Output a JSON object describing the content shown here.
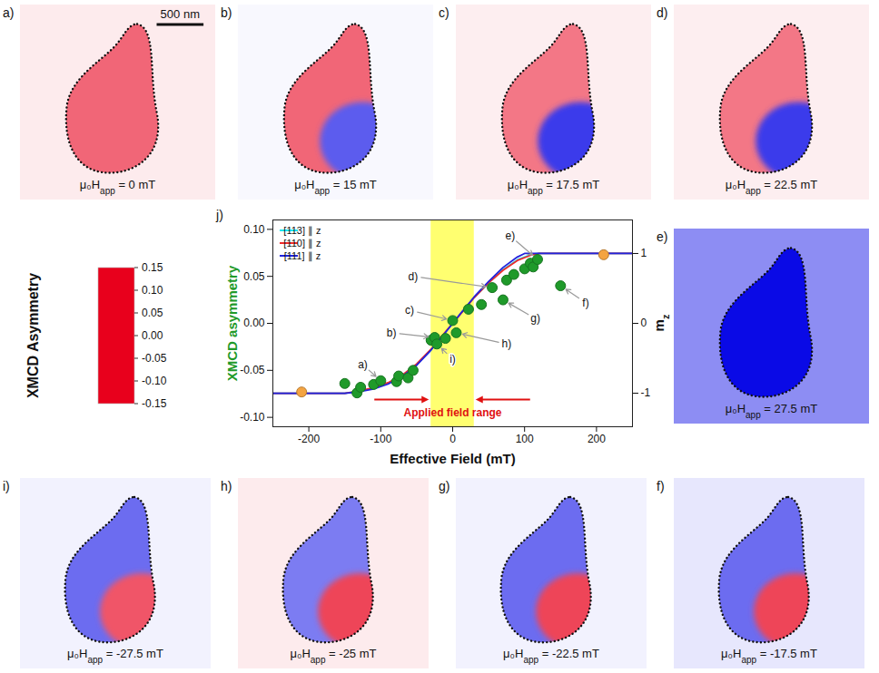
{
  "chart_data": {
    "type": "scatter",
    "panel": "j)",
    "xlabel": "Effective Field (mT)",
    "ylabel": "XMCD asymmetry",
    "y2label": "mz",
    "xlim": [
      -250,
      250
    ],
    "xticks": [
      -200,
      -100,
      0,
      100,
      200
    ],
    "ylim": [
      -0.11,
      0.11
    ],
    "yticks": [
      {
        "value": -0.1,
        "label": "-0.10"
      },
      {
        "value": -0.05,
        "label": "-0.05"
      },
      {
        "value": 0,
        "label": "0.00"
      },
      {
        "value": 0.05,
        "label": "0.05"
      },
      {
        "value": 0.1,
        "label": "0.10"
      }
    ],
    "y2lim": [
      -1.48,
      1.48
    ],
    "y2ticks": [
      -1,
      0,
      1
    ],
    "legend": "top-left",
    "band": {
      "x1": -30,
      "x2": 30,
      "color": "#ffff70",
      "label": "Applied field range",
      "label_y": -0.095,
      "label_color": "#e01010"
    },
    "series": [
      {
        "name": "[113] ∥ z",
        "type": "line",
        "axis": "y2",
        "color": "#19e6f0",
        "x": [
          -250,
          -150,
          -130,
          -110,
          -90,
          -70,
          -50,
          -30,
          -10,
          10,
          30,
          50,
          70,
          90,
          110,
          120,
          250
        ],
        "values": [
          -1,
          -1,
          -0.97,
          -0.93,
          -0.86,
          -0.75,
          -0.59,
          -0.38,
          -0.13,
          0.12,
          0.37,
          0.58,
          0.77,
          0.91,
          0.99,
          1,
          1
        ]
      },
      {
        "name": "[110] ∥ z",
        "type": "line",
        "axis": "y2",
        "color": "#ef2b2b",
        "x": [
          -250,
          -150,
          -130,
          -110,
          -90,
          -70,
          -50,
          -30,
          -10,
          10,
          30,
          50,
          70,
          90,
          110,
          120,
          250
        ],
        "values": [
          -1,
          -1,
          -0.97,
          -0.92,
          -0.85,
          -0.74,
          -0.58,
          -0.37,
          -0.12,
          0.12,
          0.37,
          0.58,
          0.76,
          0.9,
          0.98,
          1,
          1
        ]
      },
      {
        "name": "[111] ∥ z",
        "type": "line",
        "axis": "y2",
        "color": "#2222dd",
        "x": [
          -250,
          -150,
          -130,
          -110,
          -90,
          -70,
          -50,
          -30,
          -10,
          10,
          30,
          50,
          70,
          90,
          100,
          250
        ],
        "values": [
          -1,
          -1,
          -0.98,
          -0.94,
          -0.87,
          -0.76,
          -0.6,
          -0.38,
          -0.13,
          0.13,
          0.38,
          0.6,
          0.8,
          0.95,
          1,
          1
        ]
      },
      {
        "type": "scatter",
        "color": "#1f9a2a",
        "x": [
          -150,
          -133,
          -128,
          -110,
          -100,
          -78,
          -75,
          -62,
          -55,
          -30,
          -25,
          -22,
          -10,
          0,
          5,
          22,
          40,
          55,
          70,
          75,
          85,
          100,
          108,
          112,
          118,
          150
        ],
        "values": [
          -0.064,
          -0.074,
          -0.068,
          -0.065,
          -0.061,
          -0.062,
          -0.056,
          -0.058,
          -0.05,
          -0.018,
          -0.015,
          -0.022,
          -0.016,
          0.003,
          -0.01,
          0.015,
          0.02,
          0.038,
          0.025,
          0.046,
          0.052,
          0.058,
          0.064,
          0.06,
          0.068,
          0.04
        ]
      },
      {
        "type": "scatter",
        "color": "#f4a442",
        "x": [
          -210,
          210
        ],
        "values": [
          -0.073,
          0.073
        ]
      }
    ],
    "annotations": [
      {
        "text": "a)",
        "x": -125,
        "y": -0.044,
        "target": [
          -100,
          -0.061
        ]
      },
      {
        "text": "b)",
        "x": -85,
        "y": -0.01,
        "target": [
          -25,
          -0.015
        ]
      },
      {
        "text": "c)",
        "x": -60,
        "y": 0.014,
        "target": [
          0,
          0.003
        ]
      },
      {
        "text": "d)",
        "x": -55,
        "y": 0.05,
        "target": [
          55,
          0.038
        ]
      },
      {
        "text": "e)",
        "x": 80,
        "y": 0.093,
        "target": [
          118,
          0.068
        ]
      },
      {
        "text": "f)",
        "x": 185,
        "y": 0.022,
        "target": [
          150,
          0.04
        ]
      },
      {
        "text": "g)",
        "x": 115,
        "y": 0.005,
        "target": [
          70,
          0.025
        ]
      },
      {
        "text": "h)",
        "x": 75,
        "y": -0.022,
        "target": [
          5,
          -0.01
        ]
      },
      {
        "text": "i)",
        "x": 0,
        "y": -0.038,
        "target": [
          -22,
          -0.022
        ]
      }
    ]
  },
  "colorbar": {
    "title": "XMCD Asymmetry",
    "lim": [
      -0.15,
      0.15
    ],
    "colors": [
      "#e8001c",
      "#ffffff",
      "#0a0ae6"
    ],
    "ticks": [
      {
        "value": -0.15,
        "label": "-0.15"
      },
      {
        "value": -0.1,
        "label": "-0.10"
      },
      {
        "value": -0.05,
        "label": "-0.05"
      },
      {
        "value": 0,
        "label": "0.00"
      },
      {
        "value": 0.05,
        "label": "0.05"
      },
      {
        "value": 0.1,
        "label": "0.10"
      },
      {
        "value": 0.15,
        "label": "0.15"
      }
    ]
  },
  "panels": [
    {
      "letter": "a)",
      "field_label": {
        "text": "μ₀H",
        "subscript": "app",
        "after": " = 0 mT"
      },
      "background": -0.012,
      "domains": [
        -0.09
      ],
      "scale_bar": "500 nm"
    },
    {
      "letter": "b)",
      "field_label": {
        "text": "μ₀H",
        "subscript": "app",
        "after": " = 15 mT"
      },
      "background": 0.004,
      "domains": [
        -0.09,
        0.1
      ]
    },
    {
      "letter": "c)",
      "field_label": {
        "text": "μ₀H",
        "subscript": "app",
        "after": " = 17.5 mT"
      },
      "background": -0.01,
      "domains": [
        -0.08,
        0.12
      ]
    },
    {
      "letter": "d)",
      "field_label": {
        "text": "μ₀H",
        "subscript": "app",
        "after": " = 22.5 mT"
      },
      "background": -0.01,
      "domains": [
        -0.08,
        0.12
      ]
    },
    {
      "letter": "e)",
      "field_label": {
        "text": "μ₀H",
        "subscript": "app",
        "after": " = 27.5 mT"
      },
      "background": 0.07,
      "domains": [
        0.15
      ]
    },
    {
      "letter": "f)",
      "field_label": {
        "text": "μ₀H",
        "subscript": "app",
        "after": " = -17.5 mT"
      },
      "background": 0.015,
      "domains": [
        0.09,
        -0.11
      ]
    },
    {
      "letter": "g)",
      "field_label": {
        "text": "μ₀H",
        "subscript": "app",
        "after": " = -22.5 mT"
      },
      "background": 0.008,
      "domains": [
        0.09,
        -0.11
      ]
    },
    {
      "letter": "h)",
      "field_label": {
        "text": "μ₀H",
        "subscript": "app",
        "after": " = -25 mT"
      },
      "background": -0.012,
      "domains": [
        0.08,
        -0.11
      ]
    },
    {
      "letter": "i)",
      "field_label": {
        "text": "μ₀H",
        "subscript": "app",
        "after": " = -27.5 mT"
      },
      "background": 0.008,
      "domains": [
        0.09,
        -0.1
      ]
    }
  ]
}
